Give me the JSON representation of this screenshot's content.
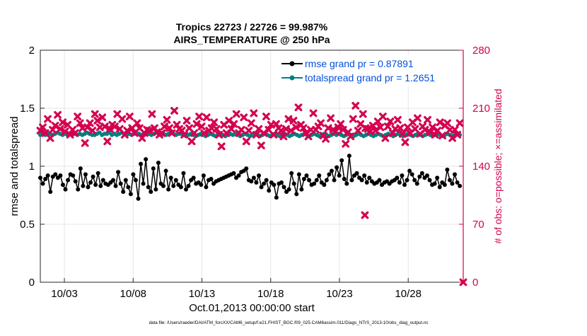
{
  "chart_data": {
    "type": "line",
    "title_line1": "Tropics 22723 / 22726 = 99.987%",
    "title_line2": "AIRS_TEMPERATURE @ 250 hPa",
    "xlabel": "Oct.01,2013 00:00:00 start",
    "ylabel_left": "rmse and totalspread",
    "ylabel_right": "# of obs: o=possible; ×=assimilated",
    "footer": "data file: /Users/raeder/DAI/ATM_forcXX/CAM6_setup/f.e21.FHIST_BGC.f09_025.CAM6assim.011/Diags_NTrS_2013-10/obs_diag_output.nc",
    "x_ticks": [
      "10/03",
      "10/08",
      "10/13",
      "10/18",
      "10/23",
      "10/28"
    ],
    "x_tick_days": [
      3,
      8,
      13,
      18,
      23,
      28
    ],
    "xlim_days": [
      1.25,
      32.0
    ],
    "ylim_left": [
      0,
      2
    ],
    "ylim_right": [
      0,
      280
    ],
    "left_ticks": [
      "0",
      "0.5",
      "1",
      "1.5",
      "2"
    ],
    "right_ticks": [
      "0",
      "70",
      "140",
      "210",
      "280"
    ],
    "legend_rmse": "rmse grand pr = 0.87891",
    "legend_spread": "totalspread grand pr = 1.2651",
    "colors": {
      "rmse": "#000000",
      "spread": "#008080",
      "obs": "#d4004f",
      "legend_text": "#0050dc"
    },
    "series": [
      {
        "name": "rmse",
        "values": [
          0.9,
          0.85,
          0.89,
          0.92,
          0.78,
          0.91,
          0.93,
          0.9,
          0.92,
          0.84,
          0.8,
          0.88,
          0.93,
          0.92,
          0.87,
          0.8,
          0.98,
          0.83,
          0.93,
          0.82,
          0.86,
          0.91,
          0.84,
          0.94,
          0.83,
          0.88,
          0.85,
          0.84,
          0.86,
          0.88,
          0.83,
          0.95,
          0.85,
          0.78,
          0.88,
          0.82,
          0.76,
          0.93,
          0.88,
          0.72,
          1.02,
          0.85,
          1.06,
          0.82,
          0.78,
          0.98,
          0.8,
          1.03,
          0.85,
          0.83,
          0.96,
          0.8,
          0.9,
          0.83,
          0.88,
          0.84,
          0.82,
          0.94,
          0.8,
          0.83,
          0.88,
          0.9,
          0.85,
          0.86,
          0.84,
          0.92,
          0.82,
          0.88,
          0.89,
          0.85,
          0.87,
          0.88,
          0.89,
          0.9,
          0.91,
          0.92,
          0.93,
          0.94,
          0.9,
          0.92,
          0.95,
          0.96,
          0.98,
          0.88,
          0.87,
          0.9,
          0.86,
          0.92,
          0.82,
          0.85,
          0.88,
          0.79,
          0.86,
          0.84,
          0.73,
          0.85,
          0.86,
          0.82,
          0.78,
          0.8,
          0.94,
          0.85,
          0.76,
          0.93,
          0.8,
          0.89,
          0.92,
          0.88,
          0.84,
          0.85,
          0.88,
          0.92,
          0.86,
          0.84,
          0.88,
          0.93,
          0.96,
          0.88,
          0.99,
          0.92,
          1.05,
          0.89,
          0.85,
          1.09,
          0.88,
          0.92,
          0.94,
          0.9,
          0.88,
          0.92,
          0.86,
          0.9,
          0.87,
          0.85,
          0.86,
          0.88,
          0.84,
          0.86,
          0.87,
          0.85,
          0.87,
          0.88,
          0.9,
          0.86,
          0.92,
          0.84,
          0.88,
          0.96,
          0.93,
          0.88,
          0.85,
          0.91,
          0.94,
          0.9,
          0.92,
          0.88,
          0.84,
          0.85,
          0.9,
          0.82,
          0.86,
          0.84,
          0.97,
          0.88,
          0.85,
          0.93,
          0.86,
          0.83
        ]
      },
      {
        "name": "totalspread",
        "values": [
          1.27,
          1.28,
          1.27,
          1.29,
          1.28,
          1.27,
          1.28,
          1.29,
          1.28,
          1.27,
          1.28,
          1.27,
          1.28,
          1.29,
          1.28,
          1.27,
          1.28,
          1.27,
          1.28,
          1.29,
          1.28,
          1.27,
          1.27,
          1.28,
          1.29,
          1.27,
          1.28,
          1.28,
          1.29,
          1.27,
          1.28,
          1.27,
          1.28,
          1.29,
          1.28,
          1.27,
          1.28,
          1.27,
          1.28,
          1.28,
          1.28,
          1.27,
          1.28,
          1.29,
          1.28,
          1.27,
          1.28,
          1.29,
          1.28,
          1.27,
          1.28,
          1.27,
          1.28,
          1.29,
          1.28,
          1.27,
          1.28,
          1.28,
          1.27,
          1.26,
          1.27,
          1.28,
          1.27,
          1.26,
          1.27,
          1.28,
          1.27,
          1.26,
          1.27,
          1.28,
          1.27,
          1.26,
          1.27,
          1.28,
          1.27,
          1.26,
          1.27,
          1.28,
          1.27,
          1.28,
          1.27,
          1.26,
          1.27,
          1.28,
          1.27,
          1.26,
          1.27,
          1.28,
          1.27,
          1.26,
          1.27,
          1.28,
          1.27,
          1.26,
          1.27,
          1.28,
          1.27,
          1.26,
          1.27,
          1.28,
          1.27,
          1.26,
          1.27,
          1.28,
          1.27,
          1.26,
          1.27,
          1.28,
          1.27,
          1.26,
          1.27,
          1.28,
          1.27,
          1.26,
          1.27,
          1.28,
          1.27,
          1.26,
          1.27,
          1.28,
          1.27,
          1.28,
          1.27,
          1.26,
          1.27,
          1.28,
          1.27,
          1.26,
          1.27,
          1.28,
          1.27,
          1.26,
          1.27,
          1.28,
          1.27,
          1.26,
          1.27,
          1.28,
          1.27,
          1.26,
          1.27,
          1.28,
          1.27,
          1.26,
          1.27,
          1.28,
          1.27,
          1.26,
          1.27,
          1.28,
          1.27,
          1.26,
          1.27,
          1.28,
          1.27,
          1.26,
          1.27,
          1.28,
          1.27,
          1.26,
          1.27,
          1.28,
          1.27,
          1.26,
          1.27,
          1.28,
          1.27,
          1.26,
          1.27,
          1.28,
          1.27
        ]
      },
      {
        "name": "obs_assimilated",
        "values": [
          183,
          187,
          180,
          197,
          174,
          184,
          189,
          202,
          185,
          193,
          182,
          190,
          178,
          184,
          180,
          200,
          192,
          186,
          168,
          187,
          192,
          183,
          203,
          195,
          187,
          199,
          188,
          170,
          185,
          190,
          188,
          203,
          185,
          197,
          178,
          183,
          200,
          186,
          180,
          192,
          186,
          174,
          180,
          184,
          183,
          203,
          186,
          181,
          178,
          180,
          188,
          196,
          186,
          180,
          207,
          190,
          185,
          183,
          178,
          195,
          186,
          170,
          180,
          191,
          200,
          188,
          180,
          199,
          183,
          186,
          193,
          185,
          178,
          164,
          190,
          180,
          195,
          185,
          191,
          203,
          180,
          184,
          199,
          170,
          183,
          192,
          204,
          178,
          185,
          165,
          180,
          200,
          184,
          190,
          178,
          191,
          186,
          183,
          176,
          185,
          197,
          183,
          195,
          187,
          211,
          190,
          186,
          180,
          176,
          184,
          204,
          184,
          188,
          192,
          177,
          173,
          186,
          198,
          184,
          182,
          187,
          191,
          184,
          167,
          181,
          176,
          197,
          213,
          183,
          191,
          203,
          186,
          185,
          182,
          189,
          183,
          194,
          187,
          200,
          174,
          188,
          194,
          180,
          185,
          196,
          186,
          179,
          169,
          187,
          180,
          193,
          185,
          198,
          179,
          188,
          184,
          196,
          181,
          187,
          178,
          183,
          193,
          177,
          189,
          192,
          184,
          174,
          184,
          178,
          192
        ]
      }
    ],
    "obs_extra_points": [
      {
        "day": 24.85,
        "value": 81
      },
      {
        "day": 32.0,
        "value": 0
      }
    ]
  }
}
